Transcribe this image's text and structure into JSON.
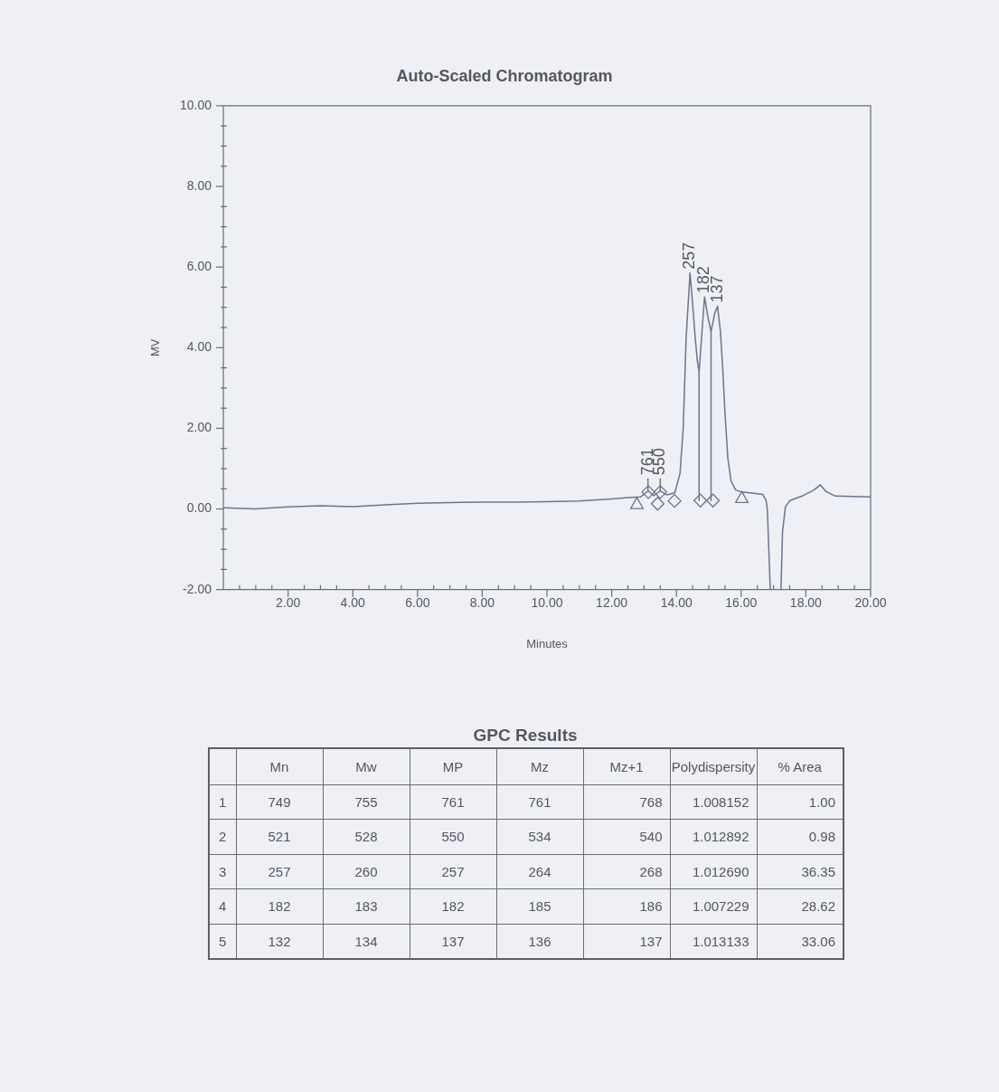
{
  "chart_data": [
    {
      "type": "line",
      "title": "Auto-Scaled Chromatogram",
      "xlabel": "Minutes",
      "ylabel": "MV",
      "xlim": [
        0,
        20
      ],
      "xticks": [
        {
          "value": 0.5,
          "label": null
        },
        {
          "value": 1,
          "label": null
        },
        {
          "value": 1.5,
          "label": null
        },
        {
          "value": 2,
          "label": "2.00"
        },
        {
          "value": 2.5,
          "label": null
        },
        {
          "value": 3,
          "label": null
        },
        {
          "value": 3.5,
          "label": null
        },
        {
          "value": 4,
          "label": "4.00"
        },
        {
          "value": 4.5,
          "label": null
        },
        {
          "value": 5,
          "label": null
        },
        {
          "value": 5.5,
          "label": null
        },
        {
          "value": 6,
          "label": "6.00"
        },
        {
          "value": 6.5,
          "label": null
        },
        {
          "value": 7,
          "label": null
        },
        {
          "value": 7.5,
          "label": null
        },
        {
          "value": 8,
          "label": "8.00"
        },
        {
          "value": 8.5,
          "label": null
        },
        {
          "value": 9,
          "label": null
        },
        {
          "value": 9.5,
          "label": null
        },
        {
          "value": 10,
          "label": "10.00"
        },
        {
          "value": 10.5,
          "label": null
        },
        {
          "value": 11,
          "label": null
        },
        {
          "value": 11.5,
          "label": null
        },
        {
          "value": 12,
          "label": "12.00"
        },
        {
          "value": 12.5,
          "label": null
        },
        {
          "value": 13,
          "label": null
        },
        {
          "value": 13.5,
          "label": null
        },
        {
          "value": 14,
          "label": "14.00"
        },
        {
          "value": 14.5,
          "label": null
        },
        {
          "value": 15,
          "label": null
        },
        {
          "value": 15.5,
          "label": null
        },
        {
          "value": 16,
          "label": "16.00"
        },
        {
          "value": 16.5,
          "label": null
        },
        {
          "value": 17,
          "label": null
        },
        {
          "value": 17.5,
          "label": null
        },
        {
          "value": 18,
          "label": "18.00"
        },
        {
          "value": 18.5,
          "label": null
        },
        {
          "value": 19,
          "label": null
        },
        {
          "value": 19.5,
          "label": null
        },
        {
          "value": 20,
          "label": "20.00"
        }
      ],
      "ylim": [
        -2,
        10
      ],
      "yticks": [
        {
          "value": -2,
          "label": "-2.00"
        },
        {
          "value": -1.5,
          "label": null
        },
        {
          "value": -1,
          "label": null
        },
        {
          "value": -0.5,
          "label": null
        },
        {
          "value": 0,
          "label": "0.00"
        },
        {
          "value": 0.5,
          "label": null
        },
        {
          "value": 1,
          "label": null
        },
        {
          "value": 1.5,
          "label": null
        },
        {
          "value": 2,
          "label": "2.00"
        },
        {
          "value": 2.5,
          "label": null
        },
        {
          "value": 3,
          "label": null
        },
        {
          "value": 3.5,
          "label": null
        },
        {
          "value": 4,
          "label": "4.00"
        },
        {
          "value": 4.5,
          "label": null
        },
        {
          "value": 5,
          "label": null
        },
        {
          "value": 5.5,
          "label": null
        },
        {
          "value": 6,
          "label": "6.00"
        },
        {
          "value": 6.5,
          "label": null
        },
        {
          "value": 7,
          "label": null
        },
        {
          "value": 7.5,
          "label": null
        },
        {
          "value": 8,
          "label": "8.00"
        },
        {
          "value": 8.5,
          "label": null
        },
        {
          "value": 9,
          "label": null
        },
        {
          "value": 9.5,
          "label": null
        },
        {
          "value": 10,
          "label": "10.00"
        }
      ],
      "series": [
        {
          "type": "line",
          "color": "#6f7489",
          "x": [
            0,
            1,
            2,
            3,
            4,
            5,
            6,
            7,
            8,
            9,
            10,
            11,
            12,
            12.5,
            12.9,
            13.13,
            13.3,
            13.5,
            13.7,
            13.95,
            14.11,
            14.21,
            14.3,
            14.42,
            14.51,
            14.58,
            14.64,
            14.7,
            14.79,
            14.87,
            14.97,
            15.07,
            15.18,
            15.27,
            15.36,
            15.44,
            15.5,
            15.59,
            15.69,
            15.83,
            16.02,
            16.39,
            16.67,
            16.77,
            16.81,
            16.85,
            16.9,
            17.05,
            17.23,
            17.28,
            17.37,
            17.51,
            17.88,
            18.25,
            18.44,
            18.63,
            18.91,
            20
          ],
          "values": [
            0.03,
            0.0,
            0.05,
            0.08,
            0.06,
            0.1,
            0.14,
            0.16,
            0.17,
            0.17,
            0.18,
            0.2,
            0.25,
            0.28,
            0.3,
            0.45,
            0.33,
            0.45,
            0.35,
            0.4,
            0.88,
            2.0,
            4.25,
            5.85,
            4.99,
            4.25,
            3.72,
            3.39,
            4.4,
            5.26,
            4.77,
            4.4,
            4.84,
            5.03,
            4.4,
            3.35,
            2.38,
            1.25,
            0.69,
            0.47,
            0.42,
            0.39,
            0.36,
            0.21,
            -0.02,
            -0.9,
            -2,
            null,
            -2,
            -0.54,
            0.06,
            0.21,
            0.32,
            0.47,
            0.6,
            0.43,
            0.32,
            0.3
          ]
        },
        {
          "type": "line",
          "color": "#6f7489",
          "x": [
            14.7,
            14.7
          ],
          "values": [
            0.21,
            3.39
          ]
        },
        {
          "type": "line",
          "color": "#6f7489",
          "x": [
            15.07,
            15.07
          ],
          "values": [
            0.21,
            4.4
          ]
        },
        {
          "type": "line",
          "color": "#6f7489",
          "x": [
            13.12,
            13.12
          ],
          "values": [
            0.45,
            0.75
          ]
        },
        {
          "type": "line",
          "color": "#6f7489",
          "x": [
            13.5,
            13.5
          ],
          "values": [
            0.45,
            0.75
          ]
        },
        {
          "type": "scatter",
          "marker": "triangle",
          "color": "#6f7489",
          "x": [
            12.78,
            16.02
          ],
          "values": [
            0.1,
            0.25
          ]
        },
        {
          "type": "scatter",
          "marker": "diamond",
          "color": "#6f7489",
          "x": [
            13.13,
            13.42,
            13.5,
            13.94,
            14.74,
            15.13
          ],
          "values": [
            0.42,
            0.13,
            0.42,
            0.2,
            0.21,
            0.21
          ]
        }
      ],
      "annotations": [
        {
          "text": "761",
          "x": 13.12,
          "y": 0.75
        },
        {
          "text": "550",
          "x": 13.5,
          "y": 0.75
        },
        {
          "text": "257",
          "x": 14.42,
          "y": 5.85
        },
        {
          "text": "182",
          "x": 14.87,
          "y": 5.26
        },
        {
          "text": "137",
          "x": 15.27,
          "y": 5.03
        }
      ]
    },
    {
      "type": "heatmap",
      "title": "GPC Results",
      "categories": [
        "Mn",
        "Mw",
        "MP",
        "Mz",
        "Mz+1",
        "Polydispersity",
        "% Area"
      ],
      "y_categories": [
        "1",
        "2",
        "3",
        "4",
        "5"
      ],
      "cells": [
        [
          749,
          755,
          761,
          761,
          768,
          1.008152,
          1.0
        ],
        [
          521,
          528,
          550,
          534,
          540,
          1.012892,
          0.98
        ],
        [
          257,
          260,
          257,
          264,
          268,
          1.01269,
          36.35
        ],
        [
          182,
          183,
          182,
          185,
          186,
          1.007229,
          28.62
        ],
        [
          132,
          134,
          137,
          136,
          137,
          1.013133,
          33.06
        ]
      ],
      "cell_labels": [
        [
          "749",
          "755",
          "761",
          "761",
          "768",
          "1.008152",
          "1.00"
        ],
        [
          "521",
          "528",
          "550",
          "534",
          "540",
          "1.012892",
          "0.98"
        ],
        [
          "257",
          "260",
          "257",
          "264",
          "268",
          "1.012690",
          "36.35"
        ],
        [
          "182",
          "183",
          "182",
          "185",
          "186",
          "1.007229",
          "28.62"
        ],
        [
          "132",
          "134",
          "137",
          "136",
          "137",
          "1.013133",
          "33.06"
        ]
      ]
    }
  ]
}
